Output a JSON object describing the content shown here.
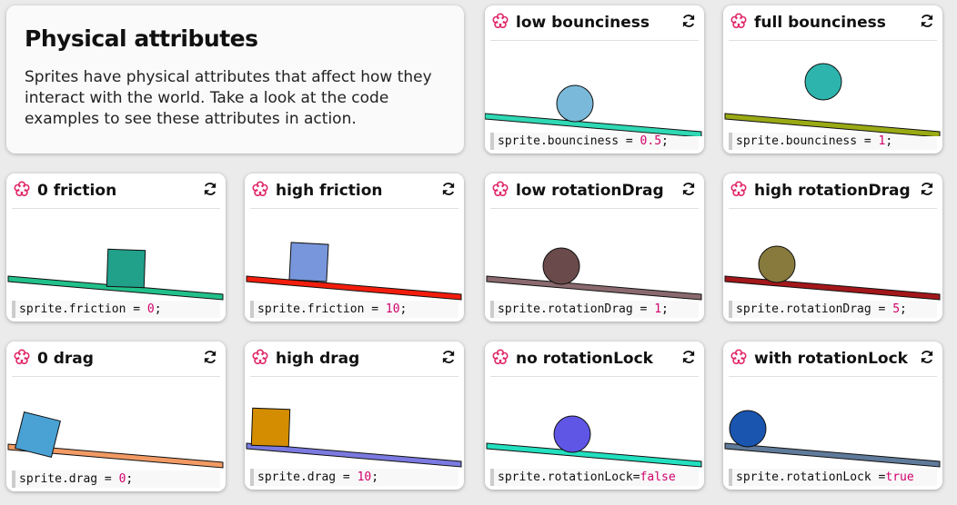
{
  "intro": {
    "title": "Physical attributes",
    "text": "Sprites have physical attributes that affect how they interact with the world. Take a look at the code examples to see these attributes in action."
  },
  "cards": [
    {
      "title": "low bounciness",
      "code_prop": "sprite.bounciness",
      "code_op": "=",
      "code_val": "0.5",
      "code_end": ";",
      "ground": "#2ed9b4",
      "shape": "circle",
      "fill": "#7ab9da"
    },
    {
      "title": "full bounciness",
      "code_prop": "sprite.bounciness",
      "code_op": "=",
      "code_val": "1",
      "code_end": ";",
      "ground": "#9aaa14",
      "shape": "circle",
      "fill": "#2db4ad"
    },
    {
      "title": "0 friction",
      "code_prop": "sprite.friction",
      "code_op": "=",
      "code_val": "0",
      "code_end": ";",
      "ground": "#22c08a",
      "shape": "box",
      "fill": "#21a08a"
    },
    {
      "title": "high friction",
      "code_prop": "sprite.friction",
      "code_op": "=",
      "code_val": "10",
      "code_end": ";",
      "ground": "#f21d0c",
      "shape": "box",
      "fill": "#7896db"
    },
    {
      "title": "low rotationDrag",
      "code_prop": "sprite.rotationDrag",
      "code_op": "=",
      "code_val": "1",
      "code_end": ";",
      "ground": "#8a6a6e",
      "shape": "circle",
      "fill": "#6a4a4a"
    },
    {
      "title": "high rotationDrag",
      "code_prop": "sprite.rotationDrag",
      "code_op": "=",
      "code_val": "5",
      "code_end": ";",
      "ground": "#a3171a",
      "shape": "circle",
      "fill": "#877a3c"
    },
    {
      "title": "0 drag",
      "code_prop": "sprite.drag",
      "code_op": "=",
      "code_val": "0",
      "code_end": ";",
      "ground": "#f29a64",
      "shape": "box",
      "fill": "#4aa1d4"
    },
    {
      "title": "high drag",
      "code_prop": "sprite.drag",
      "code_op": "=",
      "code_val": "10",
      "code_end": ";",
      "ground": "#7a7ae0",
      "shape": "box",
      "fill": "#d48d00"
    },
    {
      "title": "no rotationLock",
      "code_prop": "sprite.rotationLock",
      "code_op": "=",
      "code_val": "false",
      "code_end": "",
      "ground": "#22e0bf",
      "shape": "circle",
      "fill": "#5f56e6"
    },
    {
      "title": "with rotationLock",
      "code_prop": "sprite.rotationLock ",
      "code_op": "=",
      "code_val": "true",
      "code_end": "",
      "ground": "#5f7a9a",
      "shape": "circle",
      "fill": "#1a55b0"
    }
  ]
}
